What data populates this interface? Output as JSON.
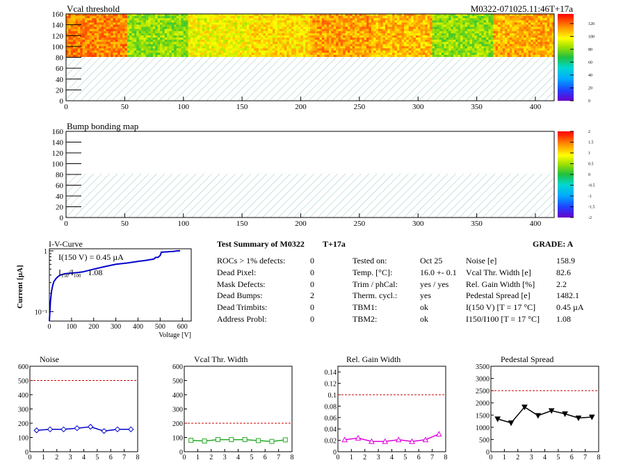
{
  "header": {
    "map1_title": "Vcal threshold",
    "module_id": "M0322-071025.11:46T+17a",
    "map2_title": "Bump bonding map"
  },
  "maps": {
    "x_ticks": [
      "0",
      "50",
      "100",
      "150",
      "200",
      "250",
      "300",
      "350",
      "400"
    ],
    "y_ticks": [
      "0",
      "20",
      "40",
      "60",
      "80",
      "100",
      "120",
      "140",
      "160"
    ],
    "xlim": [
      0,
      416
    ],
    "ylim": [
      0,
      160
    ],
    "active_rows": [
      80,
      160
    ],
    "thr_colorbar_ticks": [
      "0",
      "20",
      "40",
      "60",
      "80",
      "100",
      "120"
    ],
    "thr_colorbar_range": [
      0,
      135
    ],
    "bump_colorbar_ticks": [
      "-2",
      "-1.5",
      "-1",
      "-0.5",
      "0",
      "0.5",
      "1",
      "1.5",
      "2"
    ],
    "bump_colorbar_range": [
      -2,
      2
    ],
    "roc_threshold_levels": [
      116,
      82,
      96,
      102,
      112,
      108,
      82,
      110
    ]
  },
  "iv": {
    "title": "I-V-Curve",
    "ylabel": "Current [µA]",
    "xlabel": "Voltage [V]",
    "x_ticks": [
      "0",
      "100",
      "200",
      "300",
      "400",
      "500",
      "600"
    ],
    "y_ticks": [
      "10⁻¹",
      "1"
    ],
    "annotation1": "I(150 V) = 0.45 µA",
    "annotation2_main": "I",
    "annotation2_sub1": "150",
    "annotation2_slash": "/I",
    "annotation2_sub2": "100",
    "annotation2_value": "1.08"
  },
  "summary": {
    "title": "Test Summary of M0322",
    "tag": "T+17a",
    "grade": "GRADE:  A",
    "left": [
      {
        "label": "ROCs > 1% defects:",
        "value": "0"
      },
      {
        "label": "Dead Pixel:",
        "value": "0"
      },
      {
        "label": "Mask Defects:",
        "value": "0"
      },
      {
        "label": "Dead Bumps:",
        "value": "2"
      },
      {
        "label": "Dead Trimbits:",
        "value": "0"
      },
      {
        "label": "Address Probl:",
        "value": "0"
      }
    ],
    "middle": [
      {
        "label": "Tested on:",
        "value": "Oct 25"
      },
      {
        "label": "Temp. [°C]:",
        "value": "16.0 +- 0.1"
      },
      {
        "label": "Trim / phCal:",
        "value": "yes / yes"
      },
      {
        "label": "Therm. cycl.:",
        "value": "yes"
      },
      {
        "label": "TBM1:",
        "value": "ok"
      },
      {
        "label": "TBM2:",
        "value": "ok"
      }
    ],
    "right": [
      {
        "label": "Noise [e]",
        "value": "158.9"
      },
      {
        "label": "Vcal Thr. Width [e]",
        "value": "82.6"
      },
      {
        "label": "Rel. Gain Width [%]",
        "value": "2.2"
      },
      {
        "label": "Pedestal Spread [e]",
        "value": "1482.1"
      },
      {
        "label": "I(150 V) [T = 17 °C]",
        "value": "0.45 µA"
      },
      {
        "label": "I150/I100  [T = 17 °C]",
        "value": "1.08"
      }
    ]
  },
  "chart_data": [
    {
      "type": "line",
      "title": "I-V-Curve",
      "xlabel": "Voltage [V]",
      "ylabel": "Current [µA]",
      "yscale": "log",
      "xlim": [
        0,
        640
      ],
      "ylim": [
        0.07,
        1.08
      ],
      "x": [
        0,
        5,
        10,
        15,
        20,
        30,
        40,
        50,
        70,
        100,
        130,
        150,
        200,
        250,
        300,
        350,
        400,
        440,
        450,
        460,
        470,
        480,
        490,
        500,
        505,
        510,
        520,
        530,
        540,
        560,
        580,
        590
      ],
      "y": [
        0.07,
        0.15,
        0.22,
        0.27,
        0.31,
        0.35,
        0.38,
        0.4,
        0.42,
        0.43,
        0.44,
        0.45,
        0.5,
        0.55,
        0.6,
        0.63,
        0.67,
        0.7,
        0.71,
        0.72,
        0.73,
        0.78,
        0.78,
        0.84,
        0.95,
        0.95,
        0.96,
        0.96,
        0.97,
        0.98,
        1.0,
        1.0
      ]
    },
    {
      "type": "line",
      "title": "Noise",
      "xlim": [
        0,
        8
      ],
      "ylim": [
        0,
        600
      ],
      "y_ticks": [
        0,
        100,
        200,
        300,
        400,
        500,
        600
      ],
      "x_ticks": [
        0,
        1,
        2,
        3,
        4,
        5,
        6,
        7,
        8
      ],
      "cut": 500,
      "color": "#0000cc",
      "marker": "diamond",
      "x": [
        0.5,
        1.5,
        2.5,
        3.5,
        4.5,
        5.5,
        6.5,
        7.5
      ],
      "y": [
        150,
        157,
        157,
        165,
        175,
        145,
        157,
        157
      ]
    },
    {
      "type": "line",
      "title": "Vcal Thr. Width",
      "xlim": [
        0,
        8
      ],
      "ylim": [
        0,
        600
      ],
      "y_ticks": [
        0,
        100,
        200,
        300,
        400,
        500,
        600
      ],
      "x_ticks": [
        0,
        1,
        2,
        3,
        4,
        5,
        6,
        7,
        8
      ],
      "cut": 200,
      "color": "#22aa22",
      "marker": "square",
      "x": [
        0.5,
        1.5,
        2.5,
        3.5,
        4.5,
        5.5,
        6.5,
        7.5
      ],
      "y": [
        80,
        75,
        85,
        85,
        85,
        78,
        72,
        83
      ]
    },
    {
      "type": "line",
      "title": "Rel. Gain Width",
      "xlim": [
        0,
        8
      ],
      "ylim": [
        0,
        0.15
      ],
      "y_ticks": [
        0,
        0.02,
        0.04,
        0.06,
        0.08,
        0.1,
        0.12,
        0.14
      ],
      "x_ticks": [
        0,
        1,
        2,
        3,
        4,
        5,
        6,
        7,
        8
      ],
      "cut": 0.1,
      "color": "#dd00dd",
      "marker": "triangle",
      "x": [
        0.5,
        1.5,
        2.5,
        3.5,
        4.5,
        5.5,
        6.5,
        7.5
      ],
      "y": [
        0.021,
        0.024,
        0.018,
        0.018,
        0.021,
        0.018,
        0.021,
        0.031
      ]
    },
    {
      "type": "line",
      "title": "Pedestal Spread",
      "xlim": [
        0,
        8
      ],
      "ylim": [
        0,
        3500
      ],
      "y_ticks": [
        0,
        500,
        1000,
        1500,
        2000,
        2500,
        3000,
        3500
      ],
      "x_ticks": [
        0,
        1,
        2,
        3,
        4,
        5,
        6,
        7,
        8
      ],
      "cut": 2500,
      "color": "#000000",
      "marker": "triangle-down",
      "x": [
        0.5,
        1.5,
        2.5,
        3.5,
        4.5,
        5.5,
        6.5,
        7.5
      ],
      "y": [
        1340,
        1180,
        1830,
        1480,
        1680,
        1550,
        1380,
        1420
      ]
    }
  ]
}
